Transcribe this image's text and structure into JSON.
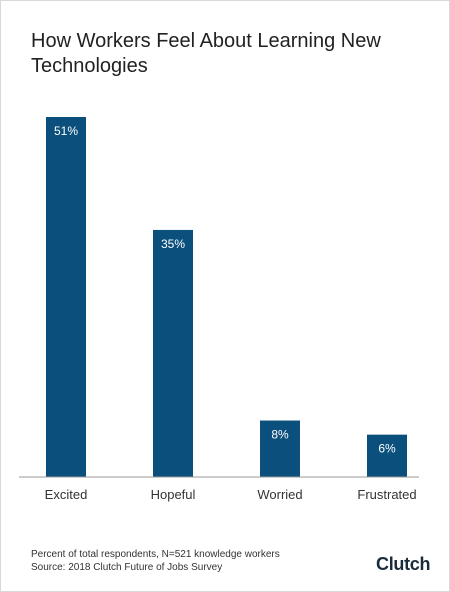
{
  "chart_data": {
    "type": "bar",
    "title": "How Workers Feel About Learning New Technologies",
    "categories": [
      "Excited",
      "Hopeful",
      "Worried",
      "Frustrated"
    ],
    "values": [
      51,
      35,
      8,
      6
    ],
    "data_labels": [
      "51%",
      "35%",
      "8%",
      "6%"
    ],
    "unit": "%",
    "bar_color": "#0b4f7c",
    "label_color": "#ffffff",
    "ylim": [
      0,
      51
    ],
    "grid": false,
    "legend": "none"
  },
  "footnote": {
    "line1": "Percent of total respondents, N=521 knowledge workers",
    "line2": "Source: 2018 Clutch Future of Jobs Survey"
  },
  "logo": "Clutch"
}
